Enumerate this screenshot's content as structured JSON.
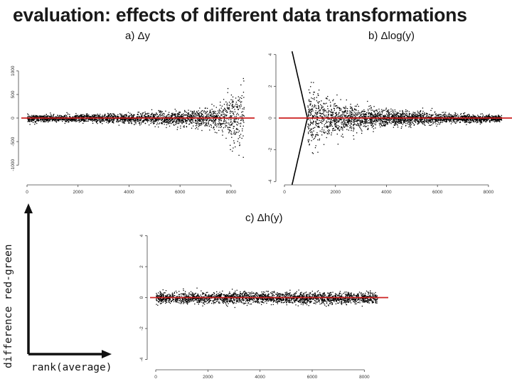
{
  "slide": {
    "title": "evaluation: effects of different data transformations",
    "y_axis_label": "difference red-green",
    "x_axis_label": "rank(average)"
  },
  "colors": {
    "reference_line": "#cc1f1f",
    "points": "#000000",
    "accent_axis": "#111111"
  },
  "chart_data": [
    {
      "type": "scatter",
      "title": "a) Δy",
      "xlabel": "",
      "ylabel": "",
      "xlim": [
        0,
        8700
      ],
      "ylim": [
        -1450,
        1450
      ],
      "xticks": [
        "0",
        "2000",
        "4000",
        "6000",
        "8000"
      ],
      "yticks": [
        "-1000",
        "-500",
        "0",
        "500",
        "1000"
      ],
      "reference_line_y": 0,
      "spread_description_points": [
        {
          "x": 0,
          "spread": 80
        },
        {
          "x": 2000,
          "spread": 90
        },
        {
          "x": 4000,
          "spread": 110
        },
        {
          "x": 6000,
          "spread": 160
        },
        {
          "x": 7500,
          "spread": 260
        },
        {
          "x": 8500,
          "spread": 900
        }
      ],
      "grid": false
    },
    {
      "type": "scatter",
      "title": "b) Δlog(y)",
      "xlabel": "",
      "ylabel": "",
      "xlim": [
        0,
        8700
      ],
      "ylim": [
        -4.3,
        4.3
      ],
      "xticks": [
        "0",
        "2000",
        "4000",
        "6000",
        "8000"
      ],
      "yticks": [
        "-4",
        "-2",
        "0",
        "2",
        "4"
      ],
      "reference_line_y": 0,
      "spread_description_points": [
        {
          "x": 900,
          "spread": 2.5
        },
        {
          "x": 1500,
          "spread": 1.5
        },
        {
          "x": 2500,
          "spread": 0.9
        },
        {
          "x": 4000,
          "spread": 0.55
        },
        {
          "x": 6000,
          "spread": 0.35
        },
        {
          "x": 8500,
          "spread": 0.2
        }
      ],
      "grid": false
    },
    {
      "type": "scatter",
      "title": "c) Δh(y)",
      "xlabel": "",
      "ylabel": "",
      "xlim": [
        0,
        8700
      ],
      "ylim": [
        -4.3,
        4.3
      ],
      "xticks": [
        "0",
        "2000",
        "4000",
        "6000",
        "8000"
      ],
      "yticks": [
        "-4",
        "-2",
        "0",
        "2",
        "4"
      ],
      "reference_line_y": 0,
      "spread_description_points": [
        {
          "x": 0,
          "spread": 0.4
        },
        {
          "x": 4000,
          "spread": 0.4
        },
        {
          "x": 8500,
          "spread": 0.4
        }
      ],
      "grid": false
    }
  ]
}
